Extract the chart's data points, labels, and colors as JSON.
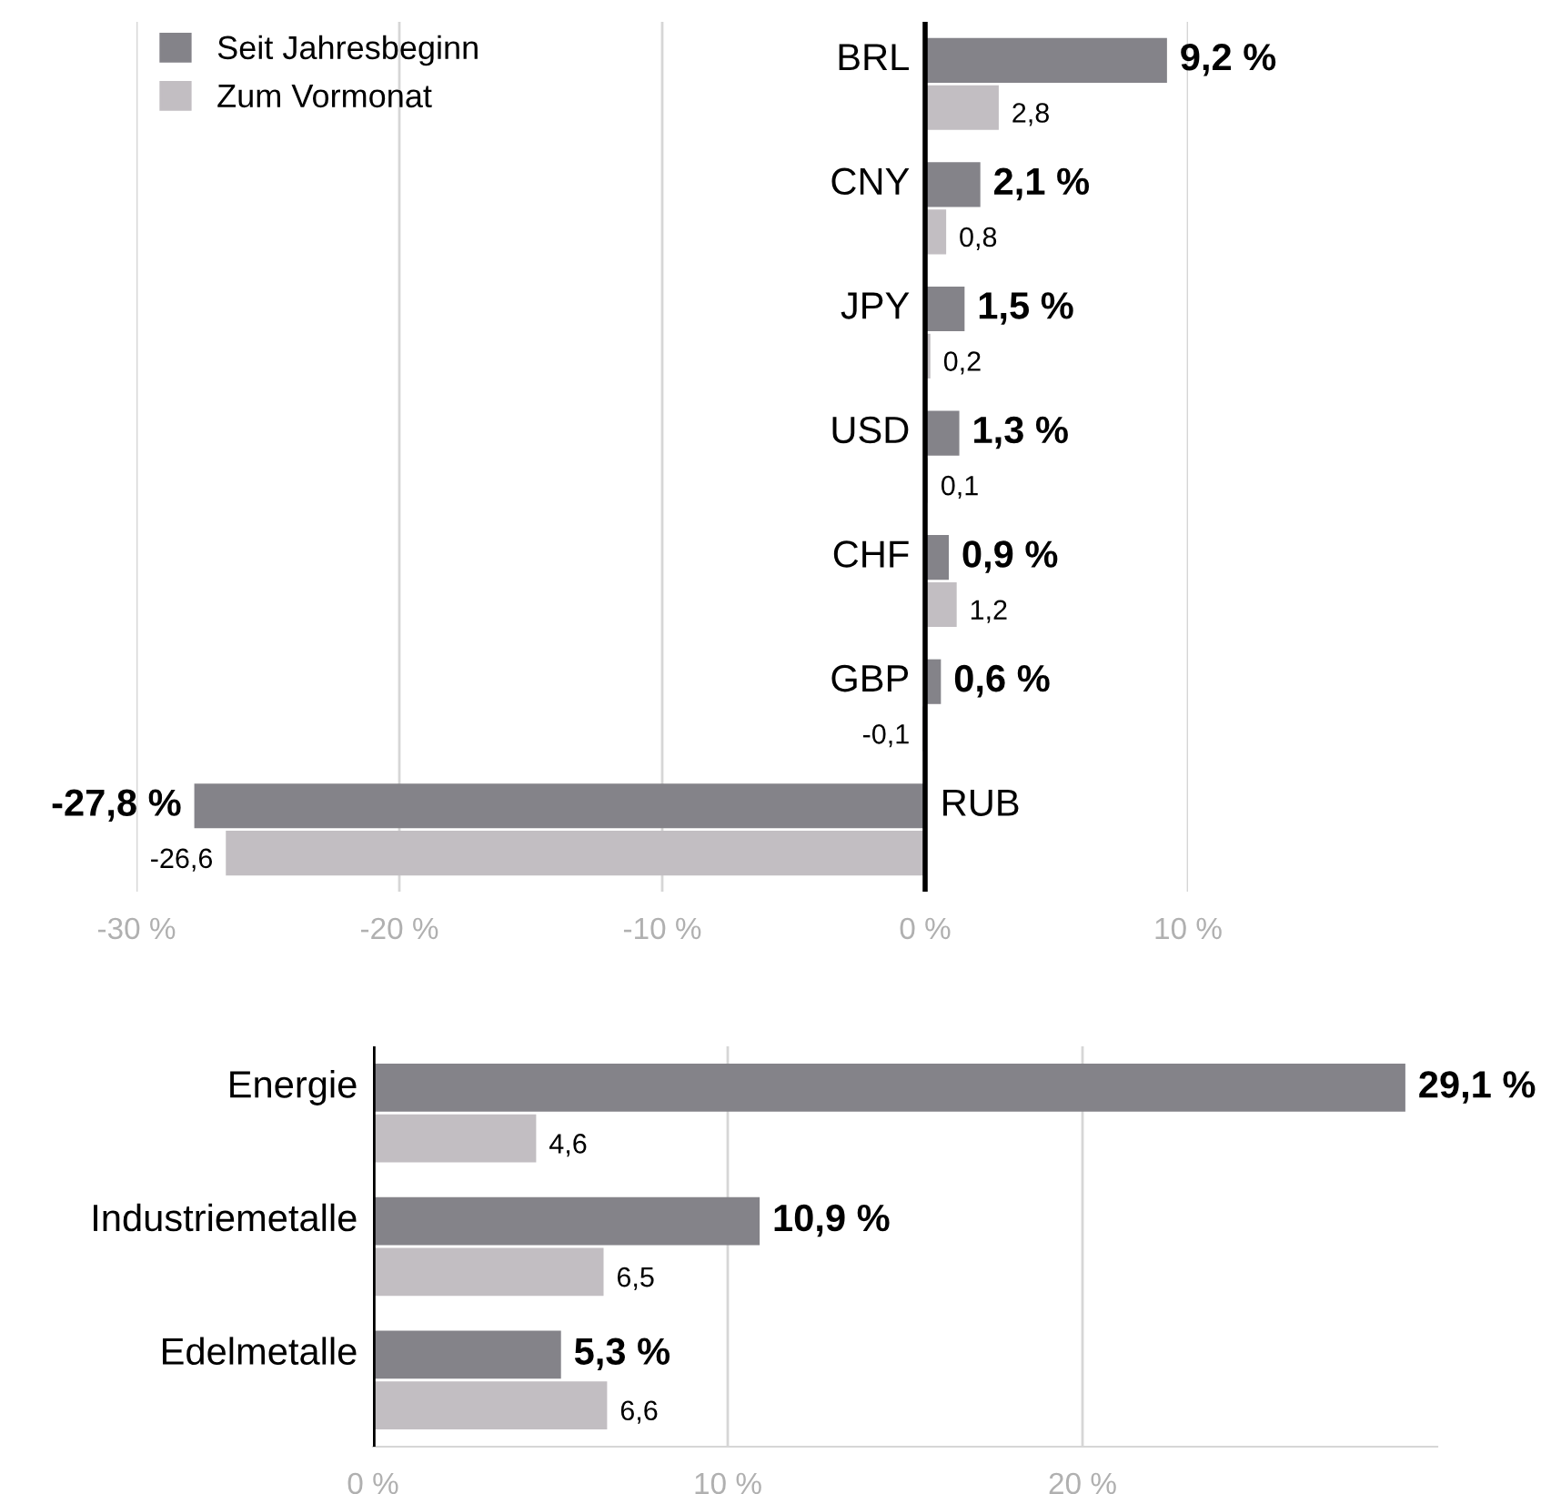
{
  "chart_data": [
    {
      "type": "bar",
      "orientation": "horizontal",
      "categories": [
        "BRL",
        "CNY",
        "JPY",
        "USD",
        "CHF",
        "GBP",
        "RUB"
      ],
      "series": [
        {
          "name": "Seit Jahresbeginn",
          "color": "#848389",
          "values": [
            9.2,
            2.1,
            1.5,
            1.3,
            0.9,
            0.6,
            -27.8
          ],
          "value_labels": [
            "9,2 %",
            "2,1 %",
            "1,5 %",
            "1,3 %",
            "0,9 %",
            "0,6 %",
            "-27,8 %"
          ]
        },
        {
          "name": "Zum Vormonat",
          "color": "#c2bec2",
          "values": [
            2.8,
            0.8,
            0.2,
            0.1,
            1.2,
            -0.1,
            -26.6
          ],
          "value_labels": [
            "2,8",
            "0,8",
            "0,2",
            "0,1",
            "1,2",
            "-0,1",
            "-26,6"
          ]
        }
      ],
      "xlim": [
        -30,
        10
      ],
      "xticks": [
        {
          "value": -30,
          "label": "-30 %"
        },
        {
          "value": -20,
          "label": "-20 %"
        },
        {
          "value": -10,
          "label": "-10 %"
        },
        {
          "value": 0,
          "label": "0 %"
        },
        {
          "value": 10,
          "label": "10 %"
        }
      ],
      "grid": "x",
      "legend": "top left"
    },
    {
      "type": "bar",
      "orientation": "horizontal",
      "categories": [
        "Energie",
        "Industriemetalle",
        "Edelmetalle"
      ],
      "series": [
        {
          "color": "#848389",
          "values": [
            29.1,
            10.9,
            5.3
          ],
          "value_labels": [
            "29,1 %",
            "10,9 %",
            "5,3 %"
          ]
        },
        {
          "color": "#c2bec2",
          "values": [
            4.6,
            6.5,
            6.6
          ],
          "value_labels": [
            "4,6",
            "6,5",
            "6,6"
          ]
        }
      ],
      "xlim": [
        0,
        30
      ],
      "xticks": [
        {
          "value": 0,
          "label": "0 %"
        },
        {
          "value": 10,
          "label": "10 %"
        },
        {
          "value": 20,
          "label": "20 %"
        }
      ],
      "grid": "x",
      "legend": false
    }
  ]
}
